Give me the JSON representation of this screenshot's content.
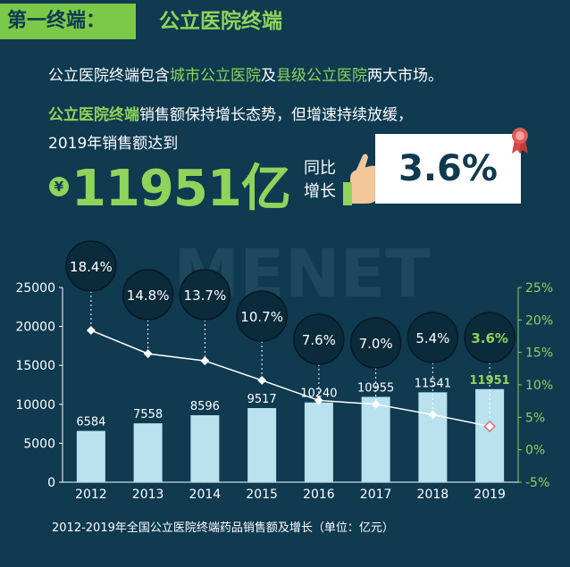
{
  "header": {
    "tag": "第一终端：",
    "title": "公立医院终端"
  },
  "intro": {
    "p1_a": "公立医院终端包含",
    "p1_b": "城市公立医院",
    "p1_c": "及",
    "p1_d": "县级公立医院",
    "p1_e": "两大市场。",
    "p2_a": "公立医院终端",
    "p2_b": "销售额保持增长态势，但增速持续放缓，",
    "p3": "2019年销售额达到"
  },
  "headline": {
    "currency": "¥",
    "value": "11951亿",
    "yoy_label": "同比增长",
    "yoy_value": "3.6%"
  },
  "watermark": "MENET",
  "caption": "2012-2019年全国公立医院终端药品销售额及增长（单位：亿元）",
  "colors": {
    "background": "#0f3a50",
    "accent_green": "#8fd35a",
    "bar": "#b9e1ee",
    "bubble": "#0b2a3a"
  },
  "chart_data": {
    "type": "bar",
    "categories": [
      "2012",
      "2013",
      "2014",
      "2015",
      "2016",
      "2017",
      "2018",
      "2019"
    ],
    "series": [
      {
        "values": [
          6584,
          7558,
          8596,
          9517,
          10240,
          10955,
          11541,
          11951
        ]
      },
      {
        "values": [
          18.4,
          14.8,
          13.7,
          10.7,
          7.6,
          7.0,
          5.4,
          3.6
        ]
      }
    ],
    "growth_labels": [
      "18.4%",
      "14.8%",
      "13.7%",
      "10.7%",
      "7.6%",
      "7.0%",
      "5.4%",
      "3.6%"
    ],
    "left_axis": {
      "ticks": [
        "0",
        "5000",
        "10000",
        "15000",
        "20000",
        "25000"
      ],
      "range": [
        0,
        25000
      ]
    },
    "right_axis": {
      "ticks": [
        "-5%",
        "0%",
        "5%",
        "10%",
        "15%",
        "20%",
        "25%"
      ],
      "range": [
        -5,
        25
      ]
    },
    "grid": false
  }
}
